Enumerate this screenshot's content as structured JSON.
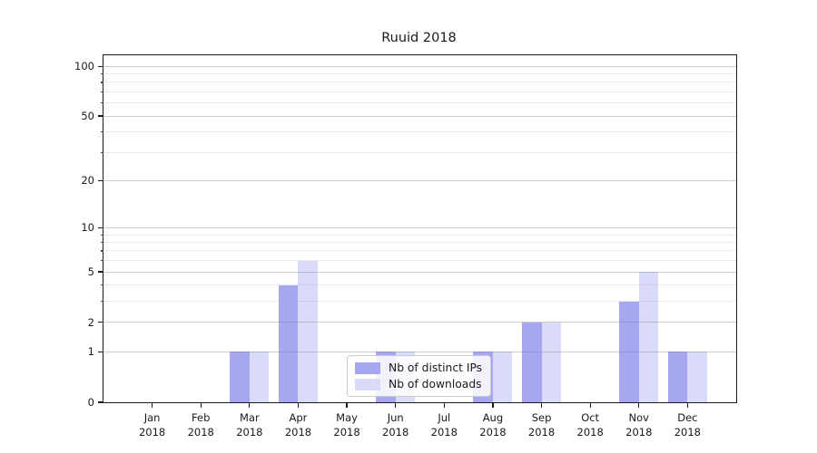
{
  "window": {
    "background": "#ffffff"
  },
  "chart_data": {
    "type": "bar",
    "title": "Ruuid 2018",
    "categories": [
      "Jan 2018",
      "Feb 2018",
      "Mar 2018",
      "Apr 2018",
      "May 2018",
      "Jun 2018",
      "Jul 2018",
      "Aug 2018",
      "Sep 2018",
      "Oct 2018",
      "Nov 2018",
      "Dec 2018"
    ],
    "series": [
      {
        "name": "Nb of distinct IPs",
        "color": "#a7a7f1",
        "values": [
          0,
          0,
          1,
          4,
          0,
          1,
          0,
          1,
          2,
          0,
          3,
          1
        ]
      },
      {
        "name": "Nb of downloads",
        "color": "#dadaf9",
        "values": [
          0,
          0,
          1,
          6,
          0,
          1,
          0,
          1,
          2,
          0,
          5,
          1
        ]
      }
    ],
    "xlabel": "",
    "ylabel": "",
    "y_axis": {
      "scale": "log1p",
      "tick_labels": [
        "0",
        "1",
        "2",
        "5",
        "10",
        "20",
        "50",
        "100"
      ],
      "ticks": [
        0,
        1,
        2,
        5,
        10,
        20,
        50,
        100
      ],
      "minor_gridlines": [
        3,
        4,
        6,
        7,
        8,
        9,
        30,
        40,
        60,
        70,
        80,
        90
      ],
      "ylim_bottom": 0,
      "ylim_top_approx": 116
    },
    "grid": true,
    "legend_position": "lower center inside plot"
  }
}
